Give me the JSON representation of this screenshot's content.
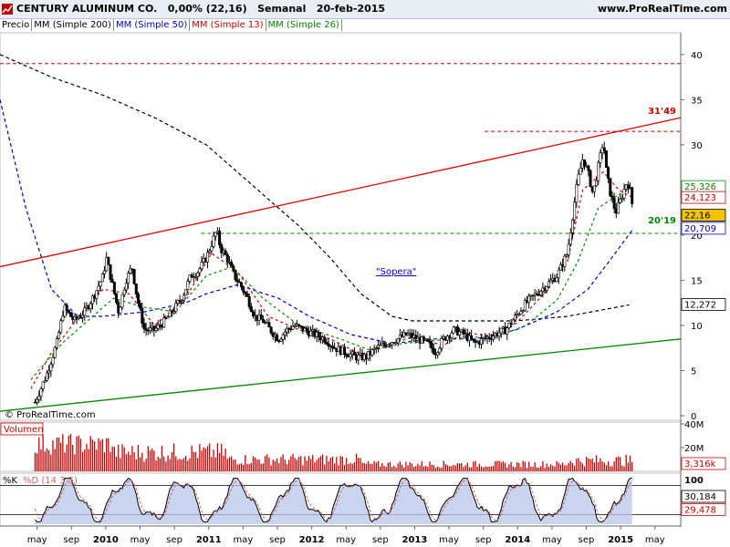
{
  "header": {
    "title": "CENTURY ALUMINUM CO.   0,00% (22,16)   Semanal   20-feb-2015",
    "site": "www.ProRealTime.com"
  },
  "legend": [
    {
      "label": "Precio",
      "color": "#000000"
    },
    {
      "label": "MM (Simple 200)",
      "color": "#000000"
    },
    {
      "label": "MM (Simple 50)",
      "color": "#0000cc"
    },
    {
      "label": "MM (Simple 13)",
      "color": "#cc0000"
    },
    {
      "label": "MM (Simple 26)",
      "color": "#008800"
    }
  ],
  "watermark": "© ProRealTime.com",
  "volume_label": "Volumen",
  "stoch_label_k": "%K",
  "stoch_label_d": "%D (14 3 5)",
  "annotations": {
    "resistance_label": "31'49",
    "support_label": "20'19",
    "note": "\"Sopera\""
  },
  "price_boxes": [
    {
      "label": "25,326",
      "color": "#008800",
      "bg": "#ffffff"
    },
    {
      "label": "24,123",
      "color": "#cc0000",
      "bg": "#ffffff"
    },
    {
      "label": "22,16",
      "color": "#000000",
      "bg": "#f5c400"
    },
    {
      "label": "20,709",
      "color": "#0000cc",
      "bg": "#ffffff"
    },
    {
      "label": "12,272",
      "color": "#000000",
      "bg": "#ffffff"
    }
  ],
  "volume_boxes": [
    {
      "label": "3,316k",
      "color": "#cc0000"
    }
  ],
  "stoch_boxes": [
    {
      "label": "30,184",
      "color": "#000000"
    },
    {
      "label": "29,478",
      "color": "#cc0000"
    }
  ],
  "chart_data": {
    "type": "candlestick",
    "title": "CENTURY ALUMINUM CO.",
    "period": "Semanal",
    "y_range": [
      0,
      42
    ],
    "y_ticks": [
      "0",
      "5",
      "10",
      "15",
      "20",
      "25",
      "30",
      "35",
      "40"
    ],
    "x_ticks": [
      "may",
      "sep",
      "2010",
      "may",
      "sep",
      "2011",
      "may",
      "sep",
      "2012",
      "may",
      "sep",
      "2013",
      "may",
      "sep",
      "2014",
      "may",
      "sep",
      "2015",
      "may"
    ],
    "close_series": [
      [
        2009.34,
        1.5
      ],
      [
        2009.45,
        4.5
      ],
      [
        2009.55,
        8.0
      ],
      [
        2009.62,
        12.0
      ],
      [
        2009.72,
        10.5
      ],
      [
        2009.82,
        11.5
      ],
      [
        2009.92,
        13.5
      ],
      [
        2010.0,
        15.5
      ],
      [
        2010.03,
        17.5
      ],
      [
        2010.1,
        14.0
      ],
      [
        2010.15,
        11.5
      ],
      [
        2010.22,
        15.0
      ],
      [
        2010.28,
        16.5
      ],
      [
        2010.33,
        13.0
      ],
      [
        2010.4,
        9.5
      ],
      [
        2010.5,
        9.5
      ],
      [
        2010.6,
        10.5
      ],
      [
        2010.7,
        12.0
      ],
      [
        2010.78,
        13.5
      ],
      [
        2010.85,
        15.5
      ],
      [
        2010.92,
        16.0
      ],
      [
        2011.0,
        17.5
      ],
      [
        2011.05,
        19.0
      ],
      [
        2011.1,
        20.5
      ],
      [
        2011.14,
        18.5
      ],
      [
        2011.2,
        17.5
      ],
      [
        2011.27,
        15.5
      ],
      [
        2011.33,
        14.5
      ],
      [
        2011.4,
        13.0
      ],
      [
        2011.47,
        11.0
      ],
      [
        2011.55,
        10.5
      ],
      [
        2011.62,
        9.5
      ],
      [
        2011.7,
        8.5
      ],
      [
        2011.78,
        9.5
      ],
      [
        2011.85,
        10.0
      ],
      [
        2011.95,
        9.5
      ],
      [
        2012.05,
        9.0
      ],
      [
        2012.15,
        8.5
      ],
      [
        2012.25,
        7.5
      ],
      [
        2012.35,
        7.0
      ],
      [
        2012.45,
        6.5
      ],
      [
        2012.55,
        6.5
      ],
      [
        2012.65,
        7.5
      ],
      [
        2012.75,
        8.0
      ],
      [
        2012.85,
        8.5
      ],
      [
        2012.95,
        9.0
      ],
      [
        2013.05,
        8.5
      ],
      [
        2013.15,
        8.0
      ],
      [
        2013.22,
        7.0
      ],
      [
        2013.3,
        8.5
      ],
      [
        2013.4,
        9.5
      ],
      [
        2013.5,
        9.0
      ],
      [
        2013.6,
        8.0
      ],
      [
        2013.7,
        8.5
      ],
      [
        2013.8,
        9.0
      ],
      [
        2013.9,
        9.5
      ],
      [
        2014.0,
        11.0
      ],
      [
        2014.1,
        12.5
      ],
      [
        2014.2,
        13.5
      ],
      [
        2014.3,
        14.5
      ],
      [
        2014.4,
        15.5
      ],
      [
        2014.5,
        18.0
      ],
      [
        2014.55,
        22.0
      ],
      [
        2014.6,
        26.0
      ],
      [
        2014.65,
        28.5
      ],
      [
        2014.7,
        27.0
      ],
      [
        2014.75,
        24.5
      ],
      [
        2014.8,
        27.5
      ],
      [
        2014.85,
        30.5
      ],
      [
        2014.88,
        27.0
      ],
      [
        2014.92,
        24.5
      ],
      [
        2014.97,
        22.5
      ],
      [
        2015.02,
        24.0
      ],
      [
        2015.08,
        26.0
      ],
      [
        2015.12,
        24.5
      ],
      [
        2015.14,
        22.16
      ]
    ],
    "sma_200": [
      [
        2009.0,
        40.0
      ],
      [
        2009.5,
        37.5
      ],
      [
        2010.0,
        35.5
      ],
      [
        2010.5,
        33.0
      ],
      [
        2011.0,
        30.0
      ],
      [
        2011.5,
        25.0
      ],
      [
        2011.9,
        21.0
      ],
      [
        2012.2,
        17.5
      ],
      [
        2012.5,
        13.5
      ],
      [
        2012.8,
        11.0
      ],
      [
        2013.0,
        10.5
      ],
      [
        2013.5,
        10.5
      ],
      [
        2014.0,
        10.5
      ],
      [
        2014.5,
        11.0
      ],
      [
        2015.1,
        12.272
      ]
    ],
    "sma_50": [
      [
        2009.0,
        35.0
      ],
      [
        2009.25,
        23.0
      ],
      [
        2009.5,
        14.0
      ],
      [
        2009.75,
        11.0
      ],
      [
        2010.0,
        11.0
      ],
      [
        2010.4,
        11.5
      ],
      [
        2010.8,
        12.5
      ],
      [
        2011.0,
        13.5
      ],
      [
        2011.3,
        14.5
      ],
      [
        2011.7,
        13.0
      ],
      [
        2012.0,
        11.0
      ],
      [
        2012.4,
        9.0
      ],
      [
        2012.8,
        8.0
      ],
      [
        2013.2,
        8.5
      ],
      [
        2013.6,
        8.5
      ],
      [
        2014.0,
        9.5
      ],
      [
        2014.4,
        11.5
      ],
      [
        2014.7,
        14.0
      ],
      [
        2014.9,
        17.0
      ],
      [
        2015.14,
        20.709
      ]
    ],
    "sma_13": [
      [
        2009.3,
        3.0
      ],
      [
        2009.5,
        7.0
      ],
      [
        2009.8,
        11.5
      ],
      [
        2010.0,
        14.0
      ],
      [
        2010.25,
        13.5
      ],
      [
        2010.5,
        10.0
      ],
      [
        2010.8,
        13.0
      ],
      [
        2011.05,
        18.0
      ],
      [
        2011.3,
        16.0
      ],
      [
        2011.6,
        11.0
      ],
      [
        2011.9,
        9.5
      ],
      [
        2012.2,
        8.5
      ],
      [
        2012.5,
        6.8
      ],
      [
        2012.8,
        8.0
      ],
      [
        2013.0,
        8.7
      ],
      [
        2013.3,
        7.8
      ],
      [
        2013.5,
        9.2
      ],
      [
        2013.8,
        8.8
      ],
      [
        2014.0,
        10.2
      ],
      [
        2014.3,
        13.8
      ],
      [
        2014.5,
        17.0
      ],
      [
        2014.65,
        25.0
      ],
      [
        2014.85,
        27.0
      ],
      [
        2015.0,
        25.0
      ],
      [
        2015.14,
        24.123
      ]
    ],
    "sma_26": [
      [
        2009.3,
        4.0
      ],
      [
        2009.6,
        8.0
      ],
      [
        2009.9,
        11.0
      ],
      [
        2010.1,
        13.0
      ],
      [
        2010.4,
        12.0
      ],
      [
        2010.7,
        11.5
      ],
      [
        2011.0,
        15.5
      ],
      [
        2011.25,
        16.5
      ],
      [
        2011.55,
        13.0
      ],
      [
        2011.9,
        10.0
      ],
      [
        2012.3,
        8.5
      ],
      [
        2012.6,
        7.2
      ],
      [
        2012.9,
        8.0
      ],
      [
        2013.2,
        8.3
      ],
      [
        2013.5,
        8.7
      ],
      [
        2013.8,
        8.7
      ],
      [
        2014.1,
        10.0
      ],
      [
        2014.4,
        12.8
      ],
      [
        2014.6,
        17.0
      ],
      [
        2014.8,
        23.0
      ],
      [
        2015.0,
        24.5
      ],
      [
        2015.14,
        25.326
      ]
    ],
    "trendlines": [
      {
        "name": "resistencia",
        "color": "#e00000",
        "points": [
          [
            2009.0,
            16.5
          ],
          [
            2015.6,
            33.0
          ]
        ]
      },
      {
        "name": "soporte",
        "color": "#008800",
        "points": [
          [
            2009.0,
            0.5
          ],
          [
            2015.6,
            8.5
          ]
        ]
      }
    ],
    "hlines": [
      {
        "value": 31.49,
        "color": "#cc0000",
        "from": 2013.7,
        "to": 2015.6
      },
      {
        "value": 20.19,
        "color": "#008800",
        "from": 2010.95,
        "to": 2015.6
      },
      {
        "value": 39.0,
        "color": "#cc0000",
        "from": 2009.0,
        "to": 2015.6
      }
    ],
    "volume_range": [
      0,
      40
    ],
    "volume_ticks": [
      "40M",
      "20M"
    ],
    "volume_last": 3.316,
    "stochastic_range": [
      0,
      100
    ],
    "stochastic_ticks": [
      "100"
    ],
    "stochastic_levels": [
      20,
      80
    ],
    "stochastic_k_last": 30.184,
    "stochastic_d_last": 29.478
  }
}
